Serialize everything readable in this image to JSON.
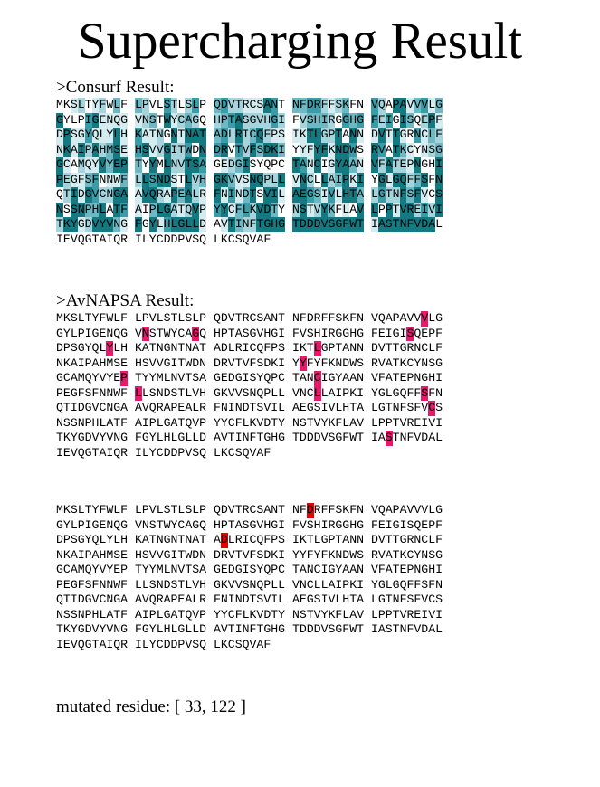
{
  "title": "Supercharging Result",
  "consurf": {
    "label": ">Consurf Result:",
    "levels": {
      "2": [
        3,
        6,
        25,
        26,
        27,
        36,
        46,
        49,
        57,
        58,
        59,
        60,
        61,
        66,
        100,
        101,
        103,
        104,
        106,
        107,
        108,
        110,
        112,
        113,
        117,
        129,
        130,
        131,
        132,
        140,
        141,
        143,
        145,
        148,
        151,
        153,
        160,
        163,
        182,
        183,
        186,
        196,
        198,
        202,
        205,
        206,
        222,
        233,
        236,
        240,
        246,
        253,
        254,
        258,
        259,
        266,
        274,
        275,
        281,
        289,
        293,
        304,
        311,
        315,
        320,
        322,
        324,
        330,
        335,
        337,
        348,
        361,
        367,
        370,
        373,
        383,
        388,
        394,
        404,
        410,
        414,
        420,
        422,
        441
      ],
      "3": [
        4,
        7,
        12,
        16,
        18,
        23,
        24,
        35,
        37,
        42,
        62,
        67,
        69,
        71,
        75,
        76,
        77,
        78,
        80,
        82,
        86,
        92,
        98,
        114,
        123,
        125,
        128,
        135,
        136,
        150,
        155,
        157,
        164,
        166,
        167,
        175,
        199,
        204,
        216,
        217,
        223,
        242,
        244,
        245,
        252,
        261,
        269,
        278,
        279,
        283,
        286,
        296,
        302,
        307,
        308,
        314,
        319,
        341,
        343,
        344,
        366,
        368,
        376,
        381,
        384,
        397,
        399,
        401,
        405,
        425,
        426
      ],
      "4": [
        9,
        11,
        21,
        31,
        32,
        38,
        47,
        50,
        63,
        68,
        72,
        83,
        84,
        85,
        89,
        96,
        121,
        126,
        149,
        158,
        177,
        180,
        195,
        200,
        208,
        211,
        224,
        239,
        255,
        260,
        270,
        273,
        287,
        297,
        317,
        325,
        334,
        340,
        346,
        355,
        356,
        363,
        374,
        379,
        386,
        409,
        424
      ],
      "5": [
        15,
        19,
        22,
        29,
        33,
        34,
        41,
        48,
        55,
        73,
        79,
        88,
        90,
        91,
        93,
        105,
        111,
        122,
        147,
        161,
        168,
        171,
        174,
        189,
        192,
        220,
        232,
        256,
        263,
        306,
        323,
        333,
        336,
        342,
        360,
        371,
        375,
        398,
        415
      ],
      "6": [
        28,
        44,
        45,
        51,
        56,
        65,
        74,
        95,
        99,
        102,
        109,
        116,
        118,
        119,
        120,
        124,
        127,
        133,
        134,
        137,
        139,
        142,
        144,
        152,
        154,
        156,
        159,
        162,
        165,
        170,
        172,
        176,
        178,
        179,
        184,
        185,
        187,
        188,
        191,
        194,
        201,
        207,
        209,
        210,
        213,
        215,
        218,
        219,
        225,
        231,
        234,
        237,
        238,
        241,
        243,
        247,
        250,
        251,
        262,
        264,
        265,
        268,
        271,
        272,
        276,
        277,
        280,
        282,
        285,
        288,
        290,
        292,
        294,
        295,
        298,
        300,
        303,
        305,
        309,
        310,
        312,
        313,
        316,
        318,
        321,
        326,
        328,
        329,
        331,
        332,
        338,
        339,
        345,
        347,
        350,
        351,
        353,
        354,
        357,
        359,
        364,
        365,
        369,
        372,
        377,
        378,
        382,
        385,
        390,
        391,
        393,
        395,
        396,
        400,
        402,
        403,
        406,
        407,
        408,
        411,
        413,
        416,
        417,
        418,
        419,
        423,
        427,
        428,
        429,
        430,
        431,
        432,
        433,
        434,
        435,
        436,
        437,
        438,
        439,
        440,
        442,
        443,
        444,
        445,
        446,
        447,
        448,
        449
      ]
    },
    "colors": {
      "2": "#d4ecef",
      "3": "#a6d4dc",
      "4": "#6db8c2",
      "5": "#3a9ca7",
      "6": "#147a82"
    }
  },
  "avnapsa": {
    "label": ">AvNAPSA Result:",
    "highlighted": [
      48,
      62,
      69,
      96,
      108,
      134,
      182,
      210,
      234,
      261,
      284,
      298,
      349,
      443
    ],
    "color": "#e8186b"
  },
  "mutation_view": {
    "highlighted": [
      33,
      122
    ],
    "color": "#e60000"
  },
  "sequence": "MKSLTYFWLFLPVLSTLSLPQDVTRCSANTNFDRFFSKFNVQAPAVVVLGGYLPIGENQGVNSTWYCAGQHPTASGVHGIFVSHIRGGHGFEIGISQEPFDPSGYQLYLHKATNGNTNATADLRICQFPSIKTLGPTANNDVTTGRNCLFNKAIPAHMSEHSVVGITWDNDRVTVFSDKIYYFYFKNDWSRVATKCYNSGGCAMQYVYEPTYYMLNVTSAGEDGISYQPCTANCIGYAANVFATEPNGHIPEGFSFNNWFLLSNDSTLVHGKVVSNQPLLVNCLLAIPKIYGLGQFFSFNQTIDGVCNGAAVQRAPEALRFNINDTSVILAEGSIVLHTALGTNFSFVCSNSSNPHLATFAIPLGATQVPYYCFLKVDTYNSTVYKFLAVLPPTVREIVITKYGDVYVNGFGYLHLGLLDAVTINFTGHGTDDDVSGFWTIASTNFVDALIEVQGTAIQRILYCDDPVSQLKCSQVAF",
  "mutated_residue_text": "mutated residue: [ 33, 122 ]"
}
